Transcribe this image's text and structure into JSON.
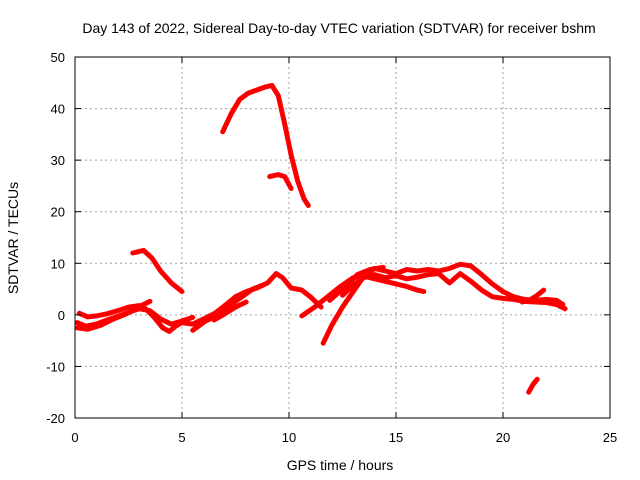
{
  "chart_data": {
    "type": "scatter",
    "title": "Day 143 of 2022, Sidereal Day-to-day VTEC variation (SDTVAR) for receiver bshm",
    "xlabel": "GPS time / hours",
    "ylabel": "SDTVAR / TECUs",
    "xlim": [
      0,
      25
    ],
    "ylim": [
      -20,
      50
    ],
    "xticks": [
      0,
      5,
      10,
      15,
      20,
      25
    ],
    "yticks": [
      -20,
      -10,
      0,
      10,
      20,
      30,
      40,
      50
    ],
    "grid": true,
    "color": "#ff0000",
    "series": [
      {
        "name": "arc-1",
        "points": [
          [
            0.1,
            -1.5
          ],
          [
            0.5,
            -2.2
          ],
          [
            1.0,
            -1.8
          ],
          [
            1.5,
            -1.0
          ],
          [
            2.0,
            -0.3
          ],
          [
            2.5,
            0.5
          ],
          [
            3.0,
            1.2
          ],
          [
            3.5,
            0.8
          ],
          [
            4.0,
            -0.8
          ],
          [
            4.5,
            -1.8
          ],
          [
            5.0,
            -1.2
          ],
          [
            5.5,
            -0.5
          ]
        ]
      },
      {
        "name": "arc-2",
        "points": [
          [
            0.2,
            0.3
          ],
          [
            0.6,
            -0.4
          ],
          [
            1.0,
            -0.2
          ],
          [
            1.5,
            0.2
          ],
          [
            2.0,
            0.8
          ],
          [
            2.5,
            1.5
          ],
          [
            3.0,
            1.8
          ],
          [
            3.3,
            1.2
          ],
          [
            3.7,
            -0.5
          ],
          [
            4.1,
            -2.5
          ],
          [
            4.4,
            -3.2
          ],
          [
            4.7,
            -2.2
          ],
          [
            5.0,
            -1.5
          ],
          [
            5.5,
            -1.8
          ],
          [
            6.0,
            -0.8
          ],
          [
            6.5,
            0.2
          ],
          [
            7.0,
            0.8
          ]
        ]
      },
      {
        "name": "arc-3",
        "points": [
          [
            0.1,
            -2.5
          ],
          [
            0.6,
            -2.8
          ],
          [
            1.2,
            -2.0
          ],
          [
            1.8,
            -0.8
          ],
          [
            2.4,
            0.2
          ],
          [
            3.0,
            1.6
          ],
          [
            3.5,
            2.6
          ]
        ]
      },
      {
        "name": "arc-4",
        "points": [
          [
            2.7,
            12.0
          ],
          [
            3.2,
            12.5
          ],
          [
            3.6,
            11.0
          ],
          [
            4.0,
            8.5
          ],
          [
            4.5,
            6.2
          ],
          [
            5.0,
            4.5
          ]
        ]
      },
      {
        "name": "arc-5",
        "points": [
          [
            5.5,
            -3.0
          ],
          [
            6.0,
            -1.5
          ],
          [
            6.5,
            0.2
          ],
          [
            7.0,
            1.8
          ],
          [
            7.5,
            3.5
          ],
          [
            8.0,
            4.5
          ],
          [
            8.5,
            5.2
          ],
          [
            9.0,
            6.2
          ],
          [
            9.4,
            8.0
          ],
          [
            9.7,
            7.2
          ],
          [
            10.1,
            5.2
          ],
          [
            10.6,
            4.8
          ],
          [
            11.0,
            3.5
          ],
          [
            11.5,
            1.5
          ]
        ]
      },
      {
        "name": "arc-6",
        "points": [
          [
            5.8,
            -1.8
          ],
          [
            6.3,
            -0.8
          ],
          [
            6.8,
            0.5
          ],
          [
            7.3,
            2.0
          ],
          [
            7.8,
            3.5
          ],
          [
            8.3,
            5.0
          ],
          [
            8.8,
            5.8
          ]
        ]
      },
      {
        "name": "arc-7",
        "points": [
          [
            6.5,
            -1.0
          ],
          [
            7.0,
            0.2
          ],
          [
            7.5,
            1.5
          ],
          [
            8.0,
            2.5
          ]
        ]
      },
      {
        "name": "arc-8",
        "points": [
          [
            6.9,
            35.5
          ],
          [
            7.3,
            39.0
          ],
          [
            7.7,
            41.8
          ],
          [
            8.1,
            43.0
          ],
          [
            8.5,
            43.6
          ],
          [
            8.9,
            44.2
          ],
          [
            9.2,
            44.5
          ],
          [
            9.5,
            42.5
          ],
          [
            9.8,
            37.0
          ],
          [
            10.1,
            31.0
          ],
          [
            10.4,
            26.0
          ],
          [
            10.7,
            22.5
          ],
          [
            10.9,
            21.2
          ]
        ]
      },
      {
        "name": "arc-9",
        "points": [
          [
            9.1,
            26.8
          ],
          [
            9.5,
            27.2
          ],
          [
            9.8,
            26.8
          ],
          [
            10.1,
            24.5
          ]
        ]
      },
      {
        "name": "arc-10",
        "points": [
          [
            10.6,
            -0.2
          ],
          [
            11.2,
            1.5
          ],
          [
            11.8,
            3.5
          ],
          [
            12.4,
            5.5
          ],
          [
            13.0,
            7.2
          ],
          [
            13.5,
            7.5
          ],
          [
            14.0,
            7.0
          ],
          [
            14.5,
            6.5
          ],
          [
            15.0,
            6.0
          ],
          [
            15.5,
            5.5
          ],
          [
            16.0,
            4.8
          ],
          [
            16.3,
            4.5
          ]
        ]
      },
      {
        "name": "arc-11",
        "points": [
          [
            11.6,
            -5.5
          ],
          [
            12.0,
            -2.0
          ],
          [
            12.5,
            1.5
          ],
          [
            13.0,
            4.5
          ],
          [
            13.5,
            7.5
          ],
          [
            14.0,
            9.0
          ],
          [
            14.5,
            8.5
          ],
          [
            15.0,
            8.0
          ],
          [
            15.5,
            8.8
          ],
          [
            16.0,
            8.5
          ],
          [
            16.5,
            8.8
          ],
          [
            17.0,
            8.5
          ],
          [
            17.5,
            9.0
          ],
          [
            18.0,
            9.8
          ],
          [
            18.5,
            9.5
          ],
          [
            19.0,
            7.8
          ],
          [
            19.5,
            6.0
          ],
          [
            20.0,
            4.5
          ],
          [
            20.5,
            3.5
          ],
          [
            21.0,
            3.0
          ],
          [
            21.5,
            2.8
          ],
          [
            22.0,
            3.0
          ],
          [
            22.5,
            2.8
          ],
          [
            22.8,
            2.0
          ]
        ]
      },
      {
        "name": "arc-12",
        "points": [
          [
            12.5,
            3.8
          ],
          [
            13.0,
            5.8
          ],
          [
            13.5,
            7.2
          ],
          [
            14.0,
            7.8
          ],
          [
            14.5,
            7.2
          ],
          [
            15.0,
            7.6
          ],
          [
            15.5,
            7.0
          ],
          [
            16.0,
            7.3
          ],
          [
            16.5,
            7.8
          ],
          [
            17.0,
            8.0
          ],
          [
            17.5,
            6.2
          ],
          [
            18.0,
            8.0
          ],
          [
            18.5,
            6.5
          ],
          [
            19.0,
            4.8
          ],
          [
            19.5,
            3.5
          ],
          [
            20.0,
            3.2
          ],
          [
            20.5,
            3.0
          ],
          [
            21.0,
            2.6
          ],
          [
            21.5,
            2.5
          ],
          [
            22.0,
            2.4
          ],
          [
            22.5,
            2.0
          ],
          [
            22.9,
            1.2
          ]
        ]
      },
      {
        "name": "arc-13",
        "points": [
          [
            11.9,
            2.8
          ],
          [
            12.5,
            5.0
          ],
          [
            13.2,
            7.8
          ],
          [
            13.8,
            8.8
          ],
          [
            14.4,
            9.2
          ]
        ]
      },
      {
        "name": "arc-14",
        "points": [
          [
            20.9,
            2.5
          ],
          [
            21.3,
            3.0
          ],
          [
            21.6,
            3.8
          ],
          [
            21.9,
            4.8
          ]
        ]
      },
      {
        "name": "arc-15",
        "points": [
          [
            21.2,
            -15.0
          ],
          [
            21.4,
            -13.5
          ],
          [
            21.6,
            -12.5
          ]
        ]
      }
    ]
  }
}
